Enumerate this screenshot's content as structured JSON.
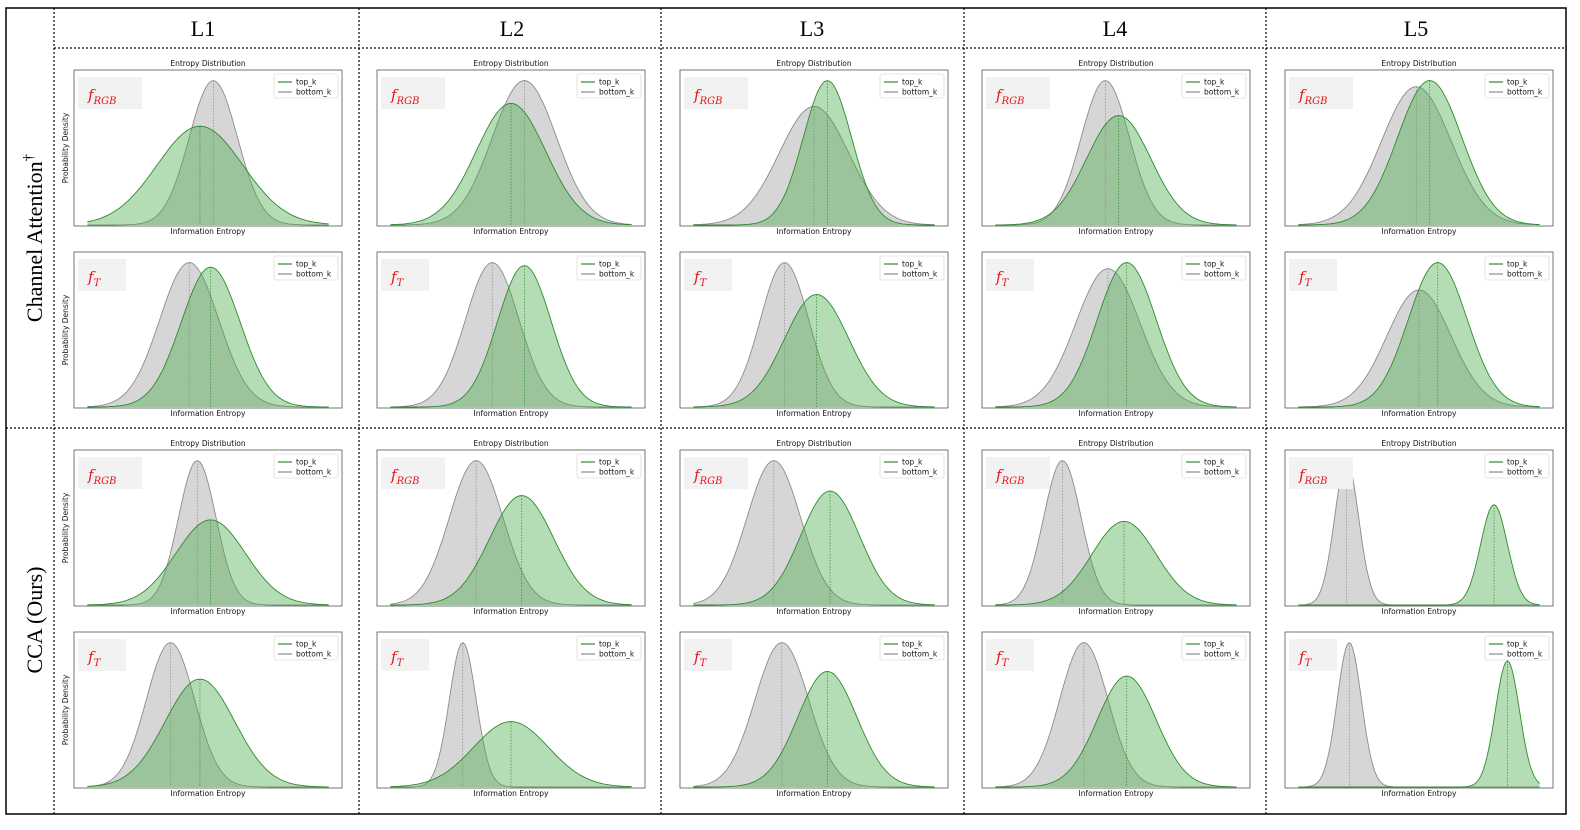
{
  "chart_data": {
    "type": "area",
    "columns": [
      "L1",
      "L2",
      "L3",
      "L4",
      "L5"
    ],
    "row_groups": [
      {
        "label": "Channel Attention",
        "superscript": "†"
      },
      {
        "label": "CCA (Ours)",
        "superscript": ""
      }
    ],
    "subplot_title": "Entropy Distribution",
    "xlabel": "Information Entropy",
    "ylabel": "Probability Density",
    "legend": [
      "top_k",
      "bottom_k"
    ],
    "legend_position": "top-right",
    "feature_labels": [
      {
        "base": "f",
        "sub": "RGB"
      },
      {
        "base": "f",
        "sub": "T"
      }
    ],
    "colors": {
      "top_k": "#2e8b2e",
      "bottom_k": "#8c8c8c",
      "label": "#e4161b"
    },
    "panels": [
      [
        [
          {
            "m": 0.47,
            "s": 0.16,
            "h": 0.65
          },
          {
            "m": 0.52,
            "s": 0.09,
            "h": 0.95
          }
        ],
        [
          {
            "m": 0.51,
            "s": 0.11,
            "h": 0.92
          },
          {
            "m": 0.43,
            "s": 0.11,
            "h": 0.95
          }
        ]
      ],
      [
        [
          {
            "m": 0.5,
            "s": 0.13,
            "h": 0.8
          },
          {
            "m": 0.55,
            "s": 0.12,
            "h": 0.95
          }
        ],
        [
          {
            "m": 0.55,
            "s": 0.1,
            "h": 0.93
          },
          {
            "m": 0.43,
            "s": 0.1,
            "h": 0.95
          }
        ]
      ],
      [
        [
          {
            "m": 0.55,
            "s": 0.09,
            "h": 0.95
          },
          {
            "m": 0.5,
            "s": 0.13,
            "h": 0.78
          }
        ],
        [
          {
            "m": 0.51,
            "s": 0.12,
            "h": 0.74
          },
          {
            "m": 0.39,
            "s": 0.09,
            "h": 0.95
          }
        ]
      ],
      [
        [
          {
            "m": 0.51,
            "s": 0.12,
            "h": 0.72
          },
          {
            "m": 0.46,
            "s": 0.09,
            "h": 0.95
          }
        ],
        [
          {
            "m": 0.54,
            "s": 0.11,
            "h": 0.95
          },
          {
            "m": 0.47,
            "s": 0.12,
            "h": 0.91
          }
        ]
      ],
      [
        [
          {
            "m": 0.54,
            "s": 0.12,
            "h": 0.95
          },
          {
            "m": 0.49,
            "s": 0.13,
            "h": 0.91
          }
        ],
        [
          {
            "m": 0.57,
            "s": 0.11,
            "h": 0.95
          },
          {
            "m": 0.5,
            "s": 0.12,
            "h": 0.77
          }
        ]
      ],
      [
        [
          {
            "m": 0.51,
            "s": 0.13,
            "h": 0.56
          },
          {
            "m": 0.46,
            "s": 0.07,
            "h": 0.95
          }
        ],
        [
          {
            "m": 0.47,
            "s": 0.13,
            "h": 0.71
          },
          {
            "m": 0.36,
            "s": 0.09,
            "h": 0.95
          }
        ]
      ],
      [
        [
          {
            "m": 0.54,
            "s": 0.12,
            "h": 0.72
          },
          {
            "m": 0.37,
            "s": 0.1,
            "h": 0.95
          }
        ],
        [
          {
            "m": 0.5,
            "s": 0.14,
            "h": 0.43
          },
          {
            "m": 0.32,
            "s": 0.05,
            "h": 0.95
          }
        ]
      ],
      [
        [
          {
            "m": 0.56,
            "s": 0.11,
            "h": 0.75
          },
          {
            "m": 0.35,
            "s": 0.1,
            "h": 0.95
          }
        ],
        [
          {
            "m": 0.55,
            "s": 0.11,
            "h": 0.76
          },
          {
            "m": 0.38,
            "s": 0.1,
            "h": 0.95
          }
        ]
      ],
      [
        [
          {
            "m": 0.53,
            "s": 0.12,
            "h": 0.55
          },
          {
            "m": 0.3,
            "s": 0.07,
            "h": 0.95
          }
        ],
        [
          {
            "m": 0.54,
            "s": 0.11,
            "h": 0.73
          },
          {
            "m": 0.38,
            "s": 0.09,
            "h": 0.95
          }
        ]
      ],
      [
        [
          {
            "m": 0.78,
            "s": 0.05,
            "h": 0.66
          },
          {
            "m": 0.23,
            "s": 0.045,
            "h": 0.95
          }
        ],
        [
          {
            "m": 0.83,
            "s": 0.045,
            "h": 0.83
          },
          {
            "m": 0.24,
            "s": 0.045,
            "h": 0.95
          }
        ]
      ]
    ]
  }
}
